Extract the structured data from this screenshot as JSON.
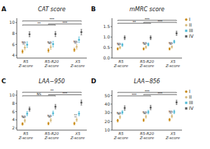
{
  "chart_data": [
    {
      "type": "errorbar",
      "label": "A",
      "title": "CAT score",
      "categories": [
        "R5 Z-score",
        "R5-R20 Z-score",
        "X5 Z-score"
      ],
      "series": [
        {
          "name": "I",
          "color": "#c8860a",
          "marker": "circle",
          "values": [
            4.7,
            4.9,
            5.0
          ],
          "errors": [
            0.3,
            0.3,
            0.3
          ]
        },
        {
          "name": "II",
          "color": "#d4b87a",
          "marker": "circle",
          "values": [
            5.4,
            5.5,
            5.55
          ],
          "errors": [
            0.4,
            0.4,
            0.4
          ]
        },
        {
          "name": "III",
          "color": "#4db8d4",
          "marker": "square",
          "values": [
            5.95,
            6.05,
            6.85
          ],
          "errors": [
            0.5,
            0.5,
            0.5
          ]
        },
        {
          "name": "IV",
          "color": "#555555",
          "marker": "square",
          "values": [
            7.85,
            7.9,
            8.25
          ],
          "errors": [
            0.45,
            0.45,
            0.5
          ]
        }
      ],
      "ylim": [
        3.5,
        10.8
      ],
      "yticks": [
        4,
        6,
        8,
        10
      ],
      "annotations": [
        {
          "text": "***",
          "x1": 0,
          "x2": 2,
          "y": 10.3
        },
        {
          "text": "**",
          "x1": 0,
          "x2": 1,
          "y": 9.55
        },
        {
          "text": "***",
          "x1": 1,
          "x2": 2,
          "y": 9.75
        },
        {
          "text": "NS",
          "category": 0
        },
        {
          "text": "NA",
          "category": 1
        },
        {
          "text": "NS",
          "category": 2
        }
      ]
    },
    {
      "type": "errorbar",
      "label": "B",
      "title": "mMRC score",
      "categories": [
        "R5 Z-score",
        "R5-R20 Z-score",
        "X5 Z-score"
      ],
      "series": [
        {
          "name": "I",
          "color": "#c8860a",
          "marker": "circle",
          "values": [
            0.44,
            0.44,
            0.44
          ],
          "errors": [
            0.05,
            0.05,
            0.05
          ]
        },
        {
          "name": "II",
          "color": "#d4b87a",
          "marker": "circle",
          "values": [
            0.5,
            0.52,
            0.53
          ],
          "errors": [
            0.06,
            0.06,
            0.06
          ]
        },
        {
          "name": "III",
          "color": "#4db8d4",
          "marker": "square",
          "values": [
            0.63,
            0.65,
            0.78
          ],
          "errors": [
            0.07,
            0.07,
            0.07
          ]
        },
        {
          "name": "IV",
          "color": "#555555",
          "marker": "square",
          "values": [
            0.97,
            0.97,
            1.18
          ],
          "errors": [
            0.09,
            0.09,
            0.1
          ]
        }
      ],
      "ylim": [
        0.0,
        1.9
      ],
      "yticks": [
        {
          "value": 0,
          "label": "0.0"
        },
        0.5,
        {
          "value": 1,
          "label": "1.0"
        },
        1.5
      ],
      "legend": "right",
      "annotations": [
        {
          "text": "***",
          "x1": 0,
          "x2": 2,
          "y": 1.8
        },
        {
          "text": "**",
          "x1": 0,
          "x2": 1,
          "y": 1.66
        },
        {
          "text": "***",
          "x1": 1,
          "x2": 2,
          "y": 1.7
        },
        {
          "text": "NS",
          "category": 0
        },
        {
          "text": "NA",
          "category": 1
        },
        {
          "text": "NS",
          "category": 2
        }
      ]
    },
    {
      "type": "errorbar",
      "label": "C",
      "title": "LAA−950",
      "categories": [
        "R5 Z-score",
        "R5-R20 Z-score",
        "X5 Z-score"
      ],
      "series": [
        {
          "name": "I",
          "color": "#c8860a",
          "marker": "circle",
          "values": [
            3.0,
            3.1,
            3.1
          ],
          "errors": [
            0.3,
            0.3,
            0.3
          ]
        },
        {
          "name": "II",
          "color": "#d4b87a",
          "marker": "circle",
          "values": [
            3.8,
            3.9,
            4.0
          ],
          "errors": [
            0.4,
            0.4,
            0.4
          ]
        },
        {
          "name": "III",
          "color": "#4db8d4",
          "marker": "square",
          "values": [
            5.5,
            5.6,
            5.5
          ],
          "errors": [
            0.5,
            0.5,
            0.5
          ]
        },
        {
          "name": "IV",
          "color": "#555555",
          "marker": "square",
          "values": [
            6.6,
            7.2,
            8.2
          ],
          "errors": [
            0.5,
            0.55,
            0.6
          ]
        }
      ],
      "ylim": [
        1.5,
        11.2
      ],
      "yticks": [
        2,
        4,
        6,
        8,
        10
      ],
      "annotations": [
        {
          "text": "**",
          "x1": 0,
          "x2": 2,
          "y": 10.7
        },
        {
          "text": "NS",
          "x1": 0,
          "x2": 1,
          "y": 9.85
        },
        {
          "text": "***",
          "x1": 1,
          "x2": 2,
          "y": 10.1
        },
        {
          "text": "NA",
          "category": 0
        },
        {
          "text": "NA",
          "category": 1
        },
        {
          "text": "**",
          "category": 2
        }
      ]
    },
    {
      "type": "errorbar",
      "label": "D",
      "title": "LAA−856",
      "categories": [
        "R5 Z-score",
        "R5-R20 Z-score",
        "X5 Z-score"
      ],
      "series": [
        {
          "name": "I",
          "color": "#c8860a",
          "marker": "circle",
          "values": [
            21.0,
            21.5,
            22.0
          ],
          "errors": [
            1.5,
            1.5,
            1.5
          ]
        },
        {
          "name": "II",
          "color": "#d4b87a",
          "marker": "circle",
          "values": [
            25.0,
            25.5,
            26.0
          ],
          "errors": [
            1.8,
            1.8,
            1.8
          ]
        },
        {
          "name": "III",
          "color": "#4db8d4",
          "marker": "square",
          "values": [
            30.5,
            30.8,
            31.0
          ],
          "errors": [
            2.0,
            2.0,
            2.0
          ]
        },
        {
          "name": "IV",
          "color": "#555555",
          "marker": "square",
          "values": [
            35.5,
            36.0,
            42.0
          ],
          "errors": [
            2.5,
            2.5,
            2.5
          ]
        }
      ],
      "ylim": [
        10,
        56
      ],
      "yticks": [
        10,
        20,
        30,
        40,
        50
      ],
      "legend": "right",
      "annotations": [
        {
          "text": "***",
          "x1": 0,
          "x2": 2,
          "y": 53.5
        },
        {
          "text": "***",
          "x1": 0,
          "x2": 1,
          "y": 49.5
        },
        {
          "text": "***",
          "x1": 1,
          "x2": 2,
          "y": 51.0
        },
        {
          "text": "NA",
          "category": 0
        },
        {
          "text": "NA",
          "category": 1
        },
        {
          "text": "NS",
          "category": 2
        }
      ]
    }
  ]
}
